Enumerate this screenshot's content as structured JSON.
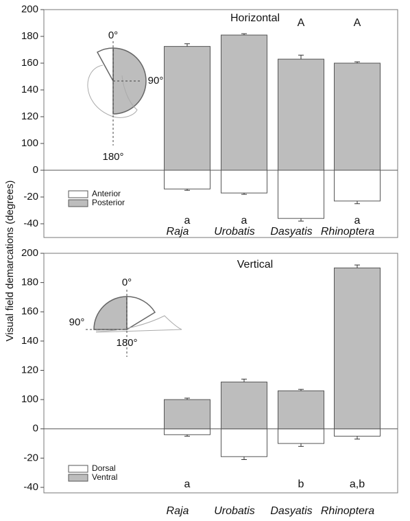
{
  "chart_data": [
    {
      "type": "bar",
      "title": "Horizontal",
      "ylabel": "Visual field demarcations (degrees)",
      "categories": [
        "Raja",
        "Urobatis",
        "Dasyatis",
        "Rhinoptera"
      ],
      "series": [
        {
          "name": "Anterior",
          "color": "#ffffff",
          "values": [
            -14,
            -17,
            -36,
            -23
          ],
          "errors": [
            1,
            1,
            2,
            2
          ]
        },
        {
          "name": "Posterior",
          "color": "#bdbdbd",
          "values": [
            172.5,
            181,
            163,
            160
          ],
          "errors": [
            2,
            1,
            3,
            1
          ]
        }
      ],
      "upper_letters": [
        null,
        null,
        "A",
        "A"
      ],
      "lower_letters": [
        "a",
        "a",
        null,
        "a"
      ],
      "inset_labels": [
        "0°",
        "90°",
        "180°"
      ],
      "ylim": [
        -40,
        200
      ],
      "yticks": [
        -40,
        -20,
        0,
        100,
        120,
        140,
        160,
        180,
        200
      ]
    },
    {
      "type": "bar",
      "title": "Vertical",
      "categories": [
        "Raja",
        "Urobatis",
        "Dasyatis",
        "Rhinoptera"
      ],
      "series": [
        {
          "name": "Dorsal",
          "color": "#ffffff",
          "values": [
            -4,
            -19,
            -10,
            -5
          ],
          "errors": [
            1,
            2,
            2,
            2
          ]
        },
        {
          "name": "Ventral",
          "color": "#bdbdbd",
          "values": [
            100,
            112,
            106,
            190
          ],
          "errors": [
            1,
            2,
            1,
            2
          ]
        }
      ],
      "upper_letters": [
        null,
        null,
        null,
        null
      ],
      "lower_letters": [
        "a",
        null,
        "b",
        "a,b"
      ],
      "inset_labels": [
        "0°",
        "90°",
        "180°"
      ],
      "ylim": [
        -40,
        200
      ],
      "yticks": [
        -40,
        -20,
        0,
        100,
        120,
        140,
        160,
        180,
        200
      ]
    }
  ]
}
